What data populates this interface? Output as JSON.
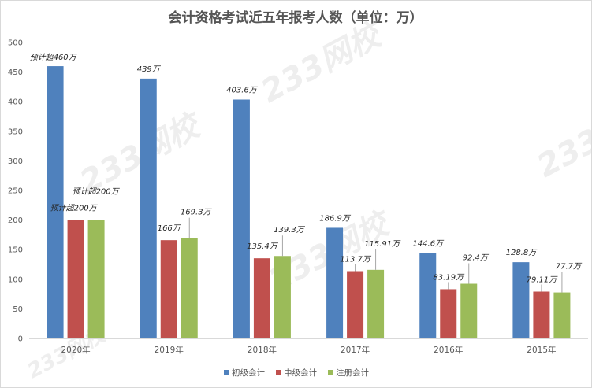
{
  "chart_data": {
    "type": "bar",
    "title": "会计资格考试近五年报考人数（单位：万）",
    "categories": [
      "2020年",
      "2019年",
      "2018年",
      "2017年",
      "2016年",
      "2015年"
    ],
    "series": [
      {
        "name": "初级会计",
        "color": "#4f81bd",
        "values": [
          460,
          439,
          403.6,
          186.9,
          144.6,
          128.8
        ],
        "labels": [
          "预计超460万",
          "439万",
          "403.6万",
          "186.9万",
          "144.6万",
          "128.8万"
        ]
      },
      {
        "name": "中级会计",
        "color": "#c0504d",
        "values": [
          200,
          166,
          135.4,
          113.7,
          83.19,
          79.11
        ],
        "labels": [
          "预计超200万",
          "166万",
          "135.4万",
          "113.7万",
          "83.19万",
          "79.11万"
        ]
      },
      {
        "name": "注册会计",
        "color": "#9bbb59",
        "values": [
          200,
          169.3,
          139.3,
          115.91,
          92.4,
          77.7
        ],
        "labels": [
          "预计超200万",
          "169.3万",
          "139.3万",
          "115.91万",
          "92.4万",
          "77.7万"
        ]
      }
    ],
    "ylim": [
      0,
      500
    ],
    "yticks": [
      0,
      50,
      100,
      150,
      200,
      250,
      300,
      350,
      400,
      450,
      500
    ],
    "grid": false,
    "legend_position": "bottom",
    "xlabel": "",
    "ylabel": ""
  },
  "watermark": "233网校"
}
